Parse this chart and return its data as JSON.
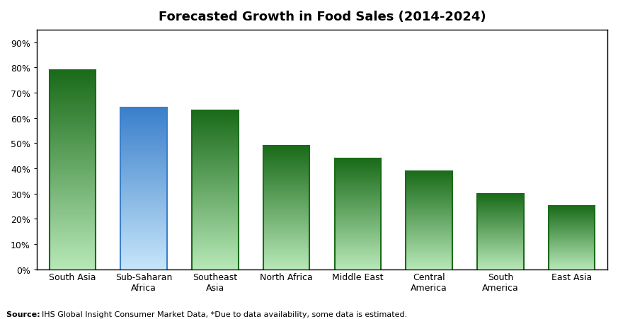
{
  "categories": [
    "South Asia",
    "Sub-Saharan\nAfrica",
    "Southeast\nAsia",
    "North Africa",
    "Middle East",
    "Central\nAmerica",
    "South\nAmerica",
    "East Asia"
  ],
  "values": [
    0.79,
    0.64,
    0.63,
    0.49,
    0.44,
    0.39,
    0.3,
    0.25
  ],
  "bar_colors": [
    "green",
    "blue",
    "green",
    "green",
    "green",
    "green",
    "green",
    "green"
  ],
  "title": "Forecasted Growth in Food Sales (2014-2024)",
  "ylim": [
    0,
    0.95
  ],
  "yticks": [
    0.0,
    0.1,
    0.2,
    0.3,
    0.4,
    0.5,
    0.6,
    0.7,
    0.8,
    0.9
  ],
  "ytick_labels": [
    "0%",
    "10%",
    "20%",
    "30%",
    "40%",
    "50%",
    "60%",
    "70%",
    "80%",
    "90%"
  ],
  "source_text": "IHS Global Insight Consumer Market Data, *Due to data availability, some data is estimated.",
  "source_bold": "Source: ",
  "background_color": "#ffffff",
  "green_top": "#1a6b1a",
  "green_bottom": "#b8e8b8",
  "blue_top": "#3a80cc",
  "blue_bottom": "#c8e4f8"
}
